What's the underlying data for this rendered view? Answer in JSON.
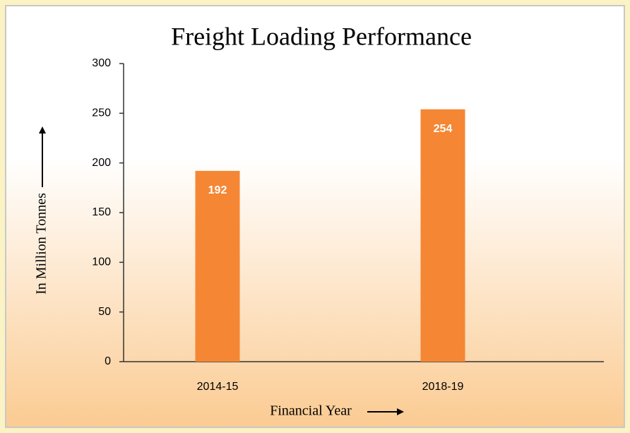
{
  "chart_data": {
    "type": "bar",
    "title": "Freight Loading Performance",
    "x_label": "Financial Year",
    "y_label": "In Million Tonnes",
    "categories": [
      "2014-15",
      "2018-19"
    ],
    "values": [
      192,
      254
    ],
    "color": "#f58634",
    "ylim": [
      0,
      300
    ],
    "yticks": [
      0,
      50,
      100,
      150,
      200,
      250,
      300
    ],
    "grid": false
  }
}
